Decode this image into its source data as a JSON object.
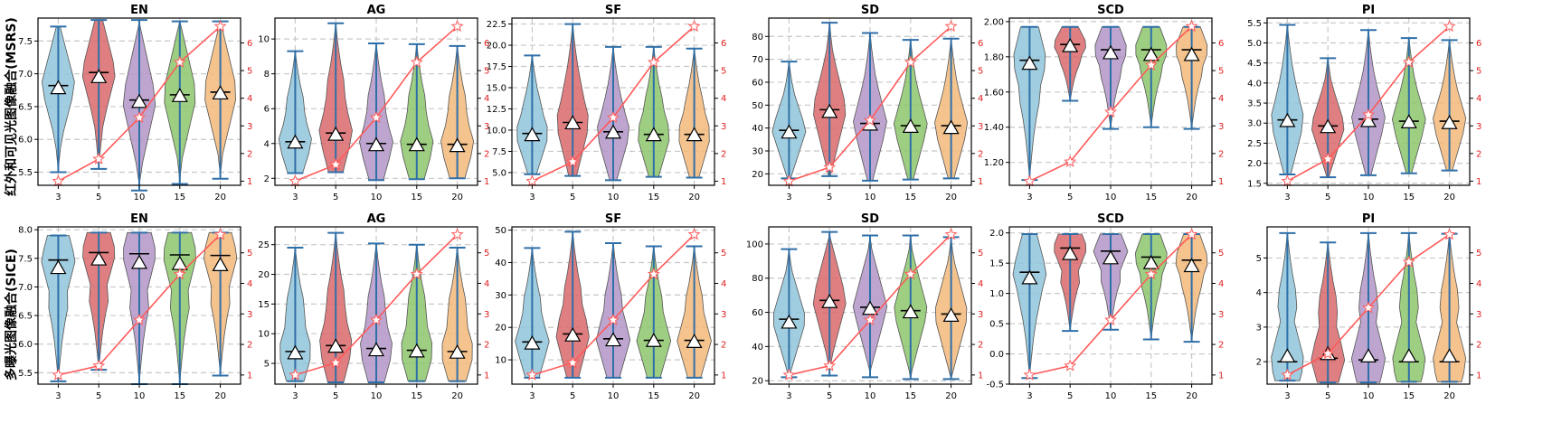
{
  "figure": {
    "row_labels": [
      "红外和可见光图像融合(MSRS)",
      "多曝光图像融合(SICE)"
    ],
    "categories": [
      "3",
      "5",
      "10",
      "15",
      "20"
    ],
    "violin_colors": [
      "#8fc4d9",
      "#d9696b",
      "#b295c7",
      "#8cc66b",
      "#f2b97a"
    ],
    "line_color": "#ff5a5a"
  },
  "chart_data": [
    {
      "type": "violin",
      "row": 0,
      "title": "EN",
      "ylim": [
        5.3,
        7.85
      ],
      "yticks": [
        5.5,
        6.0,
        6.5,
        7.0,
        7.5
      ],
      "y2lim": [
        0.85,
        6.9
      ],
      "y2ticks": [
        1,
        2,
        3,
        4,
        5,
        6
      ],
      "whiskers": [
        [
          5.5,
          7.72
        ],
        [
          5.55,
          7.82
        ],
        [
          5.22,
          7.82
        ],
        [
          5.32,
          7.8
        ],
        [
          5.4,
          7.8
        ]
      ],
      "medians": [
        6.82,
        7.02,
        6.6,
        6.68,
        6.72
      ],
      "means": [
        6.78,
        6.95,
        6.57,
        6.66,
        6.7
      ],
      "line": [
        1.0,
        1.8,
        3.3,
        5.3,
        6.6
      ]
    },
    {
      "type": "violin",
      "row": 0,
      "title": "AG",
      "ylim": [
        1.6,
        11.2
      ],
      "yticks": [
        2,
        4,
        6,
        8,
        10
      ],
      "y2lim": [
        0.85,
        6.9
      ],
      "y2ticks": [
        1,
        2,
        3,
        4,
        5,
        6
      ],
      "whiskers": [
        [
          2.3,
          9.3
        ],
        [
          2.35,
          10.9
        ],
        [
          1.9,
          9.75
        ],
        [
          1.95,
          9.7
        ],
        [
          2.0,
          9.6
        ]
      ],
      "medians": [
        4.1,
        4.6,
        4.0,
        3.95,
        3.95
      ],
      "means": [
        4.05,
        4.5,
        3.9,
        3.9,
        3.85
      ],
      "line": [
        1.0,
        1.6,
        3.3,
        5.3,
        6.6
      ]
    },
    {
      "type": "violin",
      "row": 0,
      "title": "SF",
      "ylim": [
        3.5,
        23.2
      ],
      "yticks": [
        5.0,
        7.5,
        10.0,
        12.5,
        15.0,
        17.5,
        20.0,
        22.5
      ],
      "y2lim": [
        0.85,
        6.9
      ],
      "y2ticks": [
        1,
        2,
        3,
        4,
        5,
        6
      ],
      "whiskers": [
        [
          4.8,
          18.8
        ],
        [
          4.6,
          22.5
        ],
        [
          4.1,
          19.8
        ],
        [
          4.5,
          19.8
        ],
        [
          4.4,
          19.6
        ]
      ],
      "medians": [
        9.6,
        10.9,
        9.8,
        9.5,
        9.5
      ],
      "means": [
        9.4,
        10.8,
        9.7,
        9.4,
        9.4
      ],
      "line": [
        1.0,
        1.7,
        3.3,
        5.3,
        6.6
      ]
    },
    {
      "type": "violin",
      "row": 0,
      "title": "SD",
      "ylim": [
        15,
        88
      ],
      "yticks": [
        20,
        30,
        40,
        50,
        60,
        70,
        80
      ],
      "y2lim": [
        0.85,
        6.9
      ],
      "y2ticks": [
        1,
        2,
        3,
        4,
        5,
        6
      ],
      "whiskers": [
        [
          18,
          69
        ],
        [
          19,
          86
        ],
        [
          17,
          81.5
        ],
        [
          17.5,
          78.5
        ],
        [
          18,
          79
        ]
      ],
      "medians": [
        39,
        48,
        42,
        41,
        41
      ],
      "means": [
        38,
        47,
        41.5,
        40.5,
        40
      ],
      "line": [
        1.0,
        1.5,
        3.2,
        5.3,
        6.6
      ]
    },
    {
      "type": "violin",
      "row": 0,
      "title": "SCD",
      "ylim": [
        1.07,
        2.02
      ],
      "yticks": [
        1.2,
        1.4,
        1.6,
        1.8,
        2.0
      ],
      "y2lim": [
        0.85,
        6.9
      ],
      "y2ticks": [
        1,
        2,
        3,
        4,
        5,
        6
      ],
      "whiskers": [
        [
          1.1,
          1.97
        ],
        [
          1.55,
          1.97
        ],
        [
          1.39,
          1.97
        ],
        [
          1.4,
          1.97
        ],
        [
          1.39,
          1.97
        ]
      ],
      "medians": [
        1.78,
        1.87,
        1.84,
        1.84,
        1.84
      ],
      "means": [
        1.76,
        1.86,
        1.82,
        1.81,
        1.81
      ],
      "line": [
        1.0,
        1.7,
        3.5,
        5.2,
        6.6
      ]
    },
    {
      "type": "violin",
      "row": 0,
      "title": "PI",
      "ylim": [
        1.45,
        5.62
      ],
      "yticks": [
        1.5,
        2.0,
        2.5,
        3.0,
        3.5,
        4.0,
        4.5,
        5.0,
        5.5
      ],
      "y2lim": [
        0.85,
        6.9
      ],
      "y2ticks": [
        1,
        2,
        3,
        4,
        5,
        6
      ],
      "whiskers": [
        [
          1.72,
          5.45
        ],
        [
          1.65,
          4.62
        ],
        [
          1.7,
          5.32
        ],
        [
          1.75,
          5.12
        ],
        [
          1.82,
          5.07
        ]
      ],
      "medians": [
        3.08,
        2.93,
        3.1,
        3.05,
        3.05
      ],
      "means": [
        3.05,
        2.9,
        3.05,
        3.02,
        3.0
      ],
      "line": [
        1.0,
        1.8,
        3.4,
        5.3,
        6.6
      ]
    },
    {
      "type": "violin",
      "row": 1,
      "title": "EN",
      "ylim": [
        5.3,
        8.05
      ],
      "yticks": [
        5.5,
        6.0,
        6.5,
        7.0,
        7.5,
        8.0
      ],
      "y2lim": [
        0.7,
        5.85
      ],
      "y2ticks": [
        1,
        2,
        3,
        4,
        5
      ],
      "whiskers": [
        [
          5.35,
          7.9
        ],
        [
          5.55,
          7.95
        ],
        [
          5.3,
          7.95
        ],
        [
          5.3,
          7.95
        ],
        [
          5.45,
          7.95
        ]
      ],
      "medians": [
        7.47,
        7.6,
        7.58,
        7.56,
        7.55
      ],
      "means": [
        7.33,
        7.48,
        7.42,
        7.4,
        7.38
      ],
      "line": [
        1.0,
        1.3,
        2.8,
        4.3,
        5.6
      ]
    },
    {
      "type": "violin",
      "row": 1,
      "title": "AG",
      "ylim": [
        1.5,
        28
      ],
      "yticks": [
        5,
        10,
        15,
        20,
        25
      ],
      "y2lim": [
        0.7,
        5.85
      ],
      "y2ticks": [
        1,
        2,
        3,
        4,
        5
      ],
      "whiskers": [
        [
          2.0,
          24.5
        ],
        [
          1.8,
          27
        ],
        [
          1.8,
          25.2
        ],
        [
          2.0,
          25
        ],
        [
          2.0,
          24.5
        ]
      ],
      "medians": [
        7.0,
        8.0,
        7.5,
        7.2,
        7.0
      ],
      "means": [
        6.7,
        7.8,
        7.2,
        7.0,
        6.8
      ],
      "line": [
        1.0,
        1.4,
        2.8,
        4.3,
        5.6
      ]
    },
    {
      "type": "violin",
      "row": 1,
      "title": "SF",
      "ylim": [
        2.5,
        51
      ],
      "yticks": [
        10,
        20,
        30,
        40,
        50
      ],
      "y2lim": [
        0.7,
        5.85
      ],
      "y2ticks": [
        1,
        2,
        3,
        4,
        5
      ],
      "whiskers": [
        [
          4.5,
          44.5
        ],
        [
          4.5,
          49.5
        ],
        [
          4.5,
          46
        ],
        [
          4.5,
          45
        ],
        [
          4.5,
          45
        ]
      ],
      "medians": [
        15.5,
        18.0,
        16.5,
        16.0,
        16.0
      ],
      "means": [
        15.0,
        17.5,
        16.0,
        15.8,
        15.5
      ],
      "line": [
        1.0,
        1.4,
        2.8,
        4.3,
        5.6
      ]
    },
    {
      "type": "violin",
      "row": 1,
      "title": "SD",
      "ylim": [
        18,
        110
      ],
      "yticks": [
        20,
        40,
        60,
        80,
        100
      ],
      "y2lim": [
        0.7,
        5.85
      ],
      "y2ticks": [
        1,
        2,
        3,
        4,
        5
      ],
      "whiskers": [
        [
          22,
          97
        ],
        [
          23,
          107
        ],
        [
          22,
          105
        ],
        [
          21,
          105
        ],
        [
          21,
          104
        ]
      ],
      "medians": [
        56,
        67,
        63,
        61,
        59
      ],
      "means": [
        54,
        66,
        62,
        60,
        58
      ],
      "line": [
        1.0,
        1.3,
        2.8,
        4.3,
        5.6
      ]
    },
    {
      "type": "violin",
      "row": 1,
      "title": "SCD",
      "ylim": [
        -0.5,
        2.1
      ],
      "yticks": [
        -0.5,
        0.0,
        0.5,
        1.0,
        1.5,
        2.0
      ],
      "y2lim": [
        0.7,
        5.85
      ],
      "y2ticks": [
        1,
        2,
        3,
        4,
        5
      ],
      "whiskers": [
        [
          -0.4,
          1.98
        ],
        [
          0.38,
          1.98
        ],
        [
          0.4,
          1.98
        ],
        [
          0.24,
          1.98
        ],
        [
          0.2,
          1.98
        ]
      ],
      "medians": [
        1.35,
        1.75,
        1.7,
        1.6,
        1.55
      ],
      "means": [
        1.25,
        1.65,
        1.58,
        1.5,
        1.45
      ],
      "line": [
        1.0,
        1.3,
        2.8,
        4.3,
        5.6
      ]
    },
    {
      "type": "violin",
      "row": 1,
      "title": "PI",
      "ylim": [
        1.35,
        5.9
      ],
      "yticks": [
        2,
        3,
        4,
        5
      ],
      "y2lim": [
        0.7,
        5.85
      ],
      "y2ticks": [
        1,
        2,
        3,
        4,
        5
      ],
      "whiskers": [
        [
          1.45,
          5.72
        ],
        [
          1.4,
          5.45
        ],
        [
          1.4,
          5.72
        ],
        [
          1.42,
          5.72
        ],
        [
          1.42,
          5.7
        ]
      ],
      "medians": [
        2.0,
        2.1,
        2.05,
        2.0,
        2.0
      ],
      "means": [
        2.15,
        2.22,
        2.15,
        2.15,
        2.15
      ],
      "line": [
        1.0,
        1.7,
        3.2,
        4.7,
        5.6
      ]
    }
  ]
}
